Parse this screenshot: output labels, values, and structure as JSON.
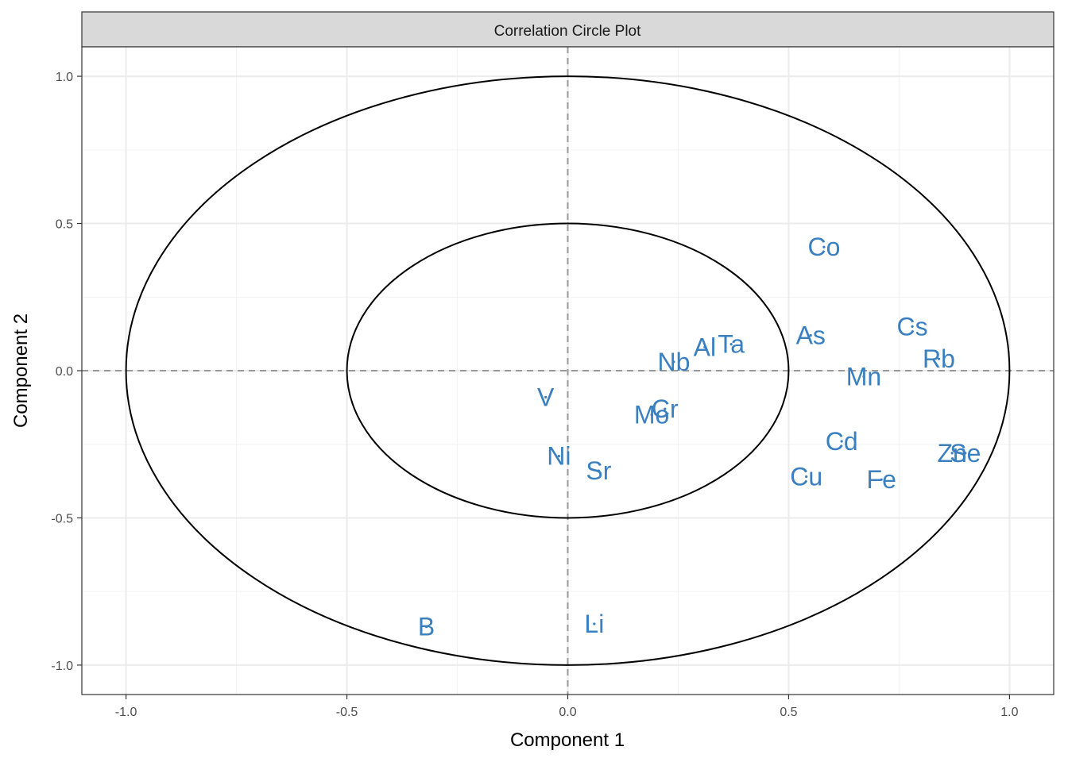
{
  "chart_data": {
    "type": "scatter",
    "title": "Correlation Circle Plot",
    "xlabel": "Component  1",
    "ylabel": "Component  2",
    "xlim": [
      -1.1,
      1.1
    ],
    "ylim": [
      -1.1,
      1.1
    ],
    "x_ticks": [
      -1.0,
      -0.5,
      0.0,
      0.5,
      1.0
    ],
    "x_tick_labels": [
      "-1.0",
      "-0.5",
      "0.0",
      "0.5",
      "1.0"
    ],
    "y_ticks": [
      -1.0,
      -0.5,
      0.0,
      0.5,
      1.0
    ],
    "y_tick_labels": [
      "-1.0",
      "-0.5",
      "0.0",
      "0.5",
      "1.0"
    ],
    "grid": true,
    "circles": [
      1.0,
      0.5
    ],
    "reference_lines": [
      {
        "axis": "x",
        "value": 0
      },
      {
        "axis": "y",
        "value": 0
      }
    ],
    "label_color": "#3A80C0",
    "points": [
      {
        "label": "Co",
        "x": 0.58,
        "y": 0.42
      },
      {
        "label": "Cs",
        "x": 0.78,
        "y": 0.15
      },
      {
        "label": "As",
        "x": 0.55,
        "y": 0.12
      },
      {
        "label": "Ta",
        "x": 0.37,
        "y": 0.09
      },
      {
        "label": "Al",
        "x": 0.31,
        "y": 0.08
      },
      {
        "label": "Rb",
        "x": 0.84,
        "y": 0.04
      },
      {
        "label": "Nb",
        "x": 0.24,
        "y": 0.03
      },
      {
        "label": "Mn",
        "x": 0.67,
        "y": -0.02
      },
      {
        "label": "V",
        "x": -0.05,
        "y": -0.09
      },
      {
        "label": "Cr",
        "x": 0.22,
        "y": -0.13
      },
      {
        "label": "Mo",
        "x": 0.19,
        "y": -0.15
      },
      {
        "label": "Cd",
        "x": 0.62,
        "y": -0.24
      },
      {
        "label": "Zn",
        "x": 0.87,
        "y": -0.28
      },
      {
        "label": "Se",
        "x": 0.9,
        "y": -0.28
      },
      {
        "label": "Ni",
        "x": -0.02,
        "y": -0.29
      },
      {
        "label": "Sr",
        "x": 0.07,
        "y": -0.34
      },
      {
        "label": "Cu",
        "x": 0.54,
        "y": -0.36
      },
      {
        "label": "Fe",
        "x": 0.71,
        "y": -0.37
      },
      {
        "label": "Li",
        "x": 0.06,
        "y": -0.86
      },
      {
        "label": "B",
        "x": -0.32,
        "y": -0.87
      }
    ]
  }
}
